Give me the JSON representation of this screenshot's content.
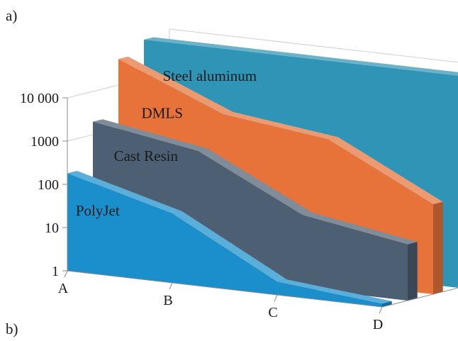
{
  "panel_labels": {
    "top": "a)",
    "bottom": "b)"
  },
  "colors": {
    "Steel aluminum": "#2f94b5",
    "DMLS": "#e8733a",
    "Cast Resin": "#4d5f73",
    "PolyJet": "#1a8fcc",
    "axis": "#8a8a8a",
    "grid": "#cfcfcf"
  },
  "chart_data": {
    "type": "area",
    "subtype": "3d-area",
    "categories": [
      "A",
      "B",
      "C",
      "D"
    ],
    "y_scale": "log",
    "ylim": [
      1,
      100000
    ],
    "y_ticks": [
      {
        "value": 1,
        "label": "1"
      },
      {
        "value": 10,
        "label": "10"
      },
      {
        "value": 100,
        "label": "100"
      },
      {
        "value": 1000,
        "label": "1000"
      },
      {
        "value": 10000,
        "label": "10 000"
      }
    ],
    "series": [
      {
        "name": "Steel aluminum",
        "values": [
          80000,
          80000,
          80000,
          80000
        ]
      },
      {
        "name": "DMLS",
        "values": [
          40000,
          4000,
          2000,
          120
        ]
      },
      {
        "name": "Cast Resin",
        "values": [
          2000,
          800,
          50,
          20
        ]
      },
      {
        "name": "PolyJet",
        "values": [
          180,
          40,
          2,
          1.2
        ]
      }
    ],
    "xlabel": "",
    "ylabel": "",
    "grid": true
  }
}
